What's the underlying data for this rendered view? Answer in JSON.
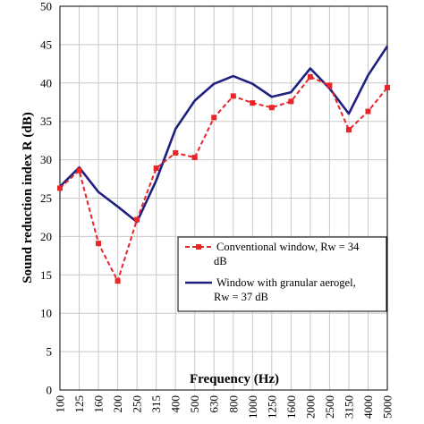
{
  "chart_data": {
    "type": "line",
    "title": "",
    "xlabel": "Frequency (Hz)",
    "ylabel": "Sound reduction index R (dB)",
    "categories": [
      "100",
      "125",
      "160",
      "200",
      "250",
      "315",
      "400",
      "500",
      "630",
      "800",
      "1000",
      "1250",
      "1600",
      "2000",
      "2500",
      "3150",
      "4000",
      "5000"
    ],
    "ylim": [
      0,
      50
    ],
    "yticks": [
      "0",
      "5",
      "10",
      "15",
      "20",
      "25",
      "30",
      "35",
      "40",
      "45",
      "50"
    ],
    "grid": true,
    "legend_position": "lower-right",
    "series": [
      {
        "name": "Conventional window, Rw = 34 dB",
        "legend_lines": [
          "Conventional window, Rw = 34",
          "dB"
        ],
        "color": "#e8262a",
        "style": "dashed-square-markers",
        "values": [
          26.3,
          28.6,
          19.1,
          14.2,
          22.2,
          28.9,
          30.9,
          30.3,
          35.5,
          38.3,
          37.4,
          36.8,
          37.6,
          40.8,
          39.7,
          33.9,
          36.3,
          39.4
        ]
      },
      {
        "name": "Window with granular aerogel, Rw = 37 dB",
        "legend_lines": [
          "Window with granular aerogel,",
          "Rw = 37 dB"
        ],
        "color": "#1f2080",
        "style": "solid",
        "values": [
          26.5,
          29.0,
          25.8,
          23.9,
          21.9,
          27.3,
          34.0,
          37.7,
          39.9,
          40.9,
          39.9,
          38.2,
          38.8,
          41.9,
          39.3,
          36.0,
          41.0,
          44.8
        ]
      }
    ]
  }
}
